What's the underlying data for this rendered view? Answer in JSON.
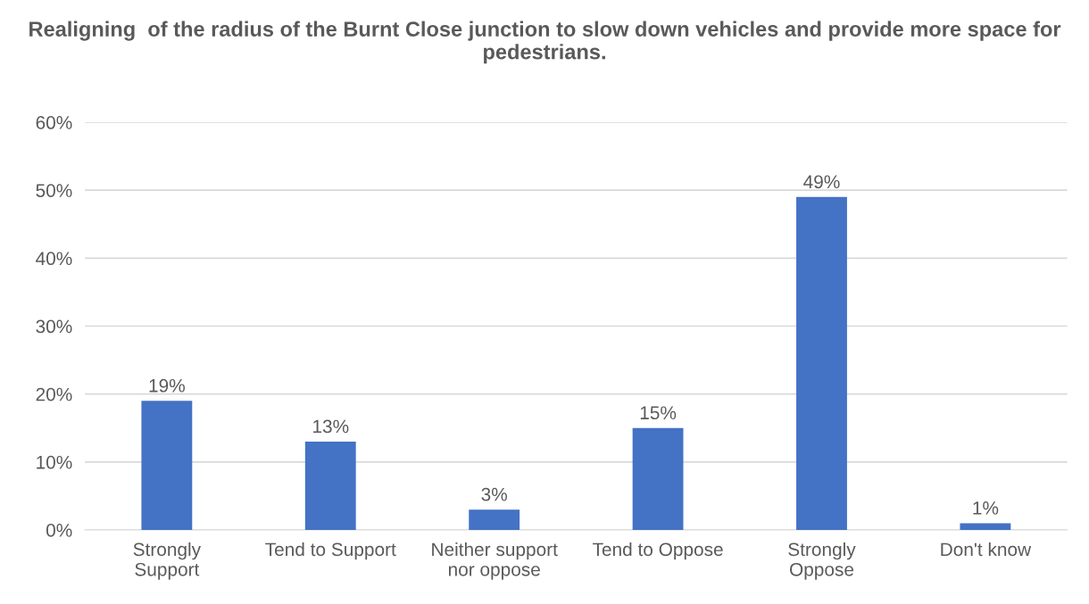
{
  "chart_data": {
    "type": "bar",
    "title": "Realigning  of the radius of the Burnt Close junction to slow down vehicles and provide more space for pedestrians.",
    "categories": [
      "Strongly\nSupport",
      "Tend to Support",
      "Neither support\nnor oppose",
      "Tend to Oppose",
      "Strongly\nOppose",
      "Don't know"
    ],
    "values": [
      19,
      13,
      3,
      15,
      49,
      1
    ],
    "color": "#4472c4",
    "ylim": [
      0,
      60
    ],
    "yticks": [
      {
        "value": 0,
        "label": "0%"
      },
      {
        "value": 10,
        "label": "10%"
      },
      {
        "value": 20,
        "label": "20%"
      },
      {
        "value": 30,
        "label": "30%"
      },
      {
        "value": 40,
        "label": "40%"
      },
      {
        "value": 50,
        "label": "50%"
      },
      {
        "value": 60,
        "label": "60%"
      }
    ],
    "value_labels": [
      "19%",
      "13%",
      "3%",
      "15%",
      "49%",
      "1%"
    ],
    "grid": "y",
    "legend": false
  }
}
